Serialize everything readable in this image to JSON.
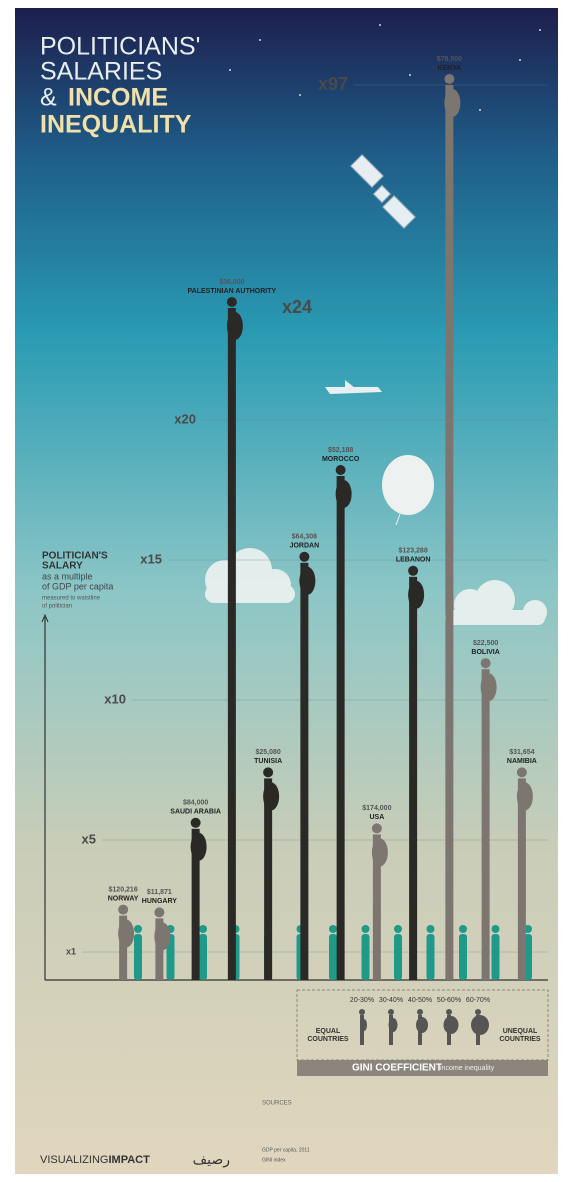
{
  "chart_data": {
    "type": "bar",
    "title": {
      "line1": "POLITICIANS'",
      "line2": "SALARIES",
      "amp": "&",
      "line3": "INCOME",
      "line4": "INEQUALITY"
    },
    "y_label": [
      "POLITICIAN'S",
      "SALARY",
      "as a multiple",
      "of GDP per capita",
      "measured to waistline",
      "of politician"
    ],
    "categories": [
      "NORWAY",
      "HUNGARY",
      "SAUDI ARABIA",
      "PALESTINIAN AUTHORITY",
      "TUNISIA",
      "JORDAN",
      "MOROCCO",
      "USA",
      "LEBANON",
      "KENYA",
      "BOLIVIA",
      "NAMIBIA"
    ],
    "values": [
      2.3,
      2.2,
      5.4,
      24,
      7.2,
      14.9,
      18,
      5.2,
      14.4,
      97,
      11.1,
      7.2
    ],
    "salaries": [
      "$120,216",
      "$11,871",
      "$84,000",
      "$36,000",
      "$25,080",
      "$64,308",
      "$52,188",
      "$174,000",
      "$123,288",
      "$78,500",
      "$22,500",
      "$31,654"
    ],
    "colors": [
      "#7d7670",
      "#7d7670",
      "#2b2926",
      "#2b2926",
      "#2b2926",
      "#2b2926",
      "#2b2926",
      "#7d7670",
      "#2b2926",
      "#7d7670",
      "#7d7670",
      "#7d7670"
    ],
    "ylim": [
      0,
      97
    ],
    "yticks": [
      {
        "value": 1,
        "label": "x1"
      },
      {
        "value": 5,
        "label": "x5"
      },
      {
        "value": 10,
        "label": "x10"
      },
      {
        "value": 15,
        "label": "x15"
      },
      {
        "value": 20,
        "label": "x20"
      },
      {
        "value": 24,
        "label": "x24"
      },
      {
        "value": 97,
        "label": "x97"
      }
    ],
    "grid": true,
    "gini": {
      "bands": [
        "20-30%",
        "30-40%",
        "40-50%",
        "50-60%",
        "60-70%"
      ],
      "low": [
        "EQUAL",
        "COUNTRIES"
      ],
      "high": [
        "UNEQUAL",
        "COUNTRIES"
      ],
      "title": "GINI COEFFICIENT",
      "subtitle": "income inequality"
    },
    "sources": {
      "heading": "SOURCES",
      "lines": [
        "GDP per capita, 2011",
        "GINI index"
      ]
    },
    "brand": [
      "VISUALIZING",
      "IMPACT"
    ],
    "partner": "رصيف"
  }
}
